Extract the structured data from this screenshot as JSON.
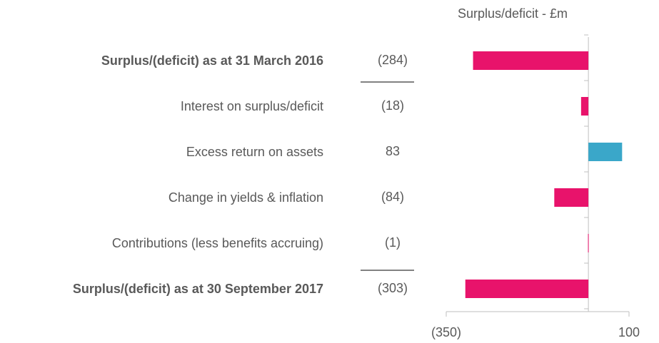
{
  "chart_data": {
    "type": "bar",
    "orientation": "horizontal",
    "axis_label": "Surplus/deficit - £m",
    "categories": [
      "Surplus/(deficit) as at 31 March 2016",
      "Interest on surplus/deficit",
      "Excess return on assets",
      "Change in yields & inflation",
      "Contributions (less benefits accruing)",
      "Surplus/(deficit) as at 30 September 2017"
    ],
    "values": [
      -284,
      -18,
      83,
      -84,
      -1,
      -303
    ],
    "value_labels": [
      "(284)",
      "(18)",
      "83",
      "(84)",
      "(1)",
      "(303)"
    ],
    "colors": [
      "#e8136b",
      "#e8136b",
      "#3aa7c9",
      "#e8136b",
      "#e8136b",
      "#e8136b"
    ],
    "xlim": [
      -350,
      100
    ],
    "xticks": [
      {
        "value": -350,
        "label": "(350)"
      },
      100
    ]
  }
}
